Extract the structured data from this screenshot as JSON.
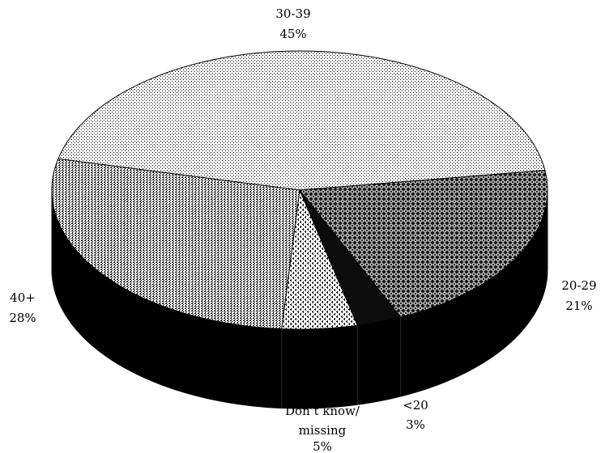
{
  "chart_data": {
    "type": "pie",
    "style": "3d",
    "categories": [
      "30-39",
      "20-29",
      "<20",
      "Don’t know/ missing",
      "40+"
    ],
    "values": [
      45,
      21,
      3,
      5,
      28
    ],
    "value_labels": [
      "45%",
      "21%",
      "3%",
      "5%",
      "28%"
    ],
    "title": "",
    "legend": "none",
    "label_lines": {
      "30-39": [
        "30-39",
        "45%"
      ],
      "20-29": [
        "20-29",
        "21%"
      ],
      "<20": [
        "<20",
        "3%"
      ],
      "dont_know": [
        "Don’t know/",
        "missing",
        "5%"
      ],
      "40+": [
        "40+",
        "28%"
      ]
    },
    "colors": {
      "edge": "#000000",
      "side": "#000000",
      "side_dark": "#111111",
      "background": "#ffffff"
    }
  }
}
